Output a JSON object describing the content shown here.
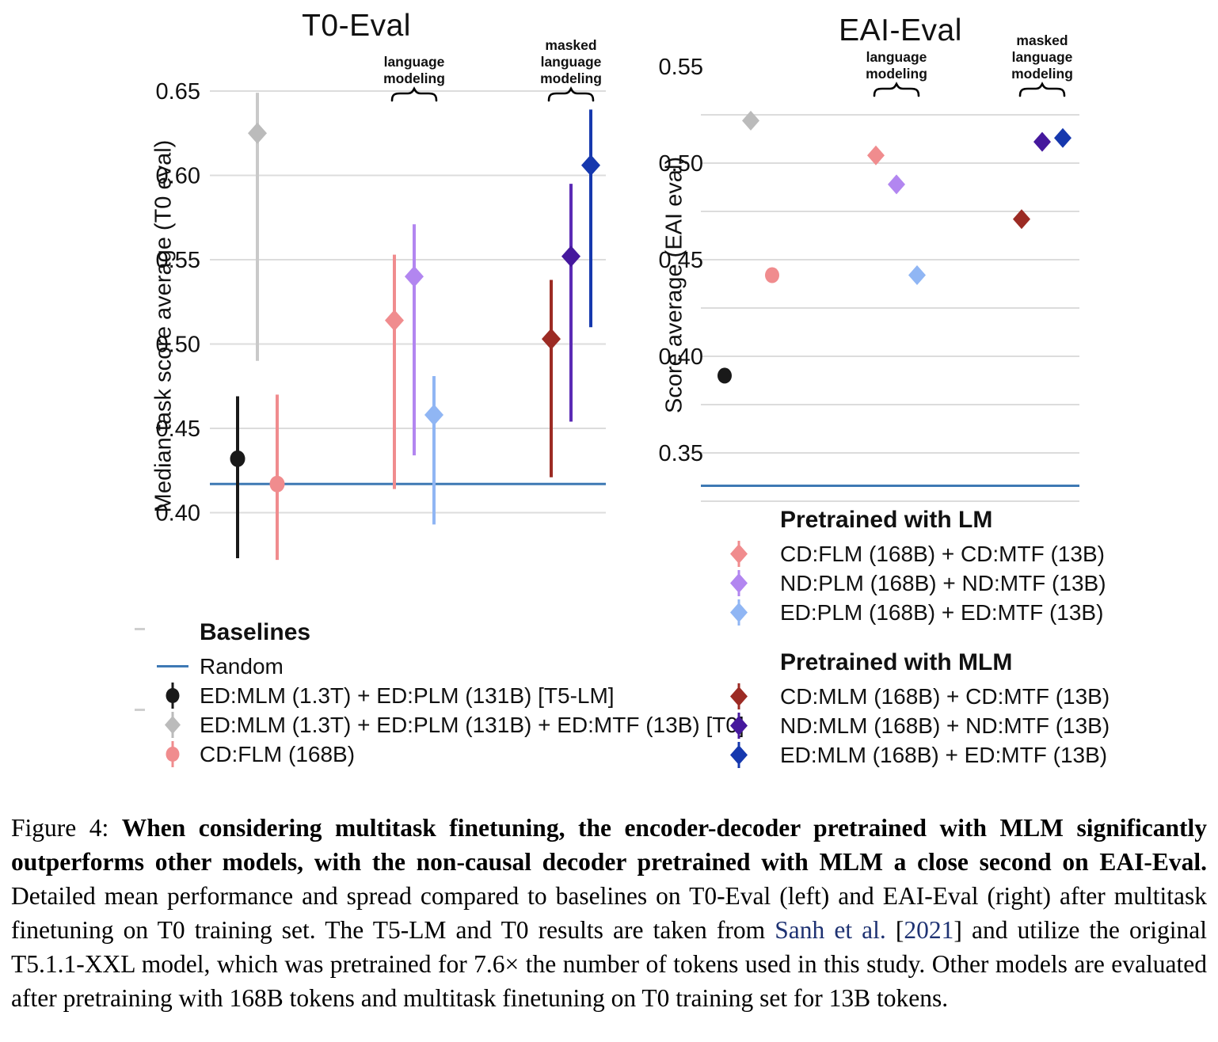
{
  "chart_data": [
    {
      "type": "scatter",
      "panel": "left",
      "title": "T0-Eval",
      "ylabel": "Median task score average (T0 eval)",
      "ylim": [
        0.365,
        0.66
      ],
      "grid": "on",
      "legend_position": "below",
      "yticks": [
        {
          "v": 0.65,
          "label": "0.65"
        },
        {
          "v": 0.6,
          "label": "0.60"
        },
        {
          "v": 0.55,
          "label": "0.55"
        },
        {
          "v": 0.5,
          "label": "0.50"
        },
        {
          "v": 0.45,
          "label": "0.45"
        },
        {
          "v": 0.4,
          "label": "0.40"
        }
      ],
      "gridline_values": [
        0.65,
        0.6,
        0.55,
        0.5,
        0.45,
        0.4
      ],
      "random_baseline": 0.417,
      "annotations": [
        {
          "group": "lm",
          "lines": [
            "language",
            "modeling"
          ]
        },
        {
          "group": "mlm",
          "lines": [
            "masked",
            "language",
            "modeling"
          ]
        }
      ],
      "series": [
        {
          "label": "ED:MLM (1.3T) + ED:PLM (131B) [T5-LM]",
          "marker": "circle",
          "color": "#191919",
          "group": "baseline",
          "slot": 0,
          "mean": 0.432,
          "lo": 0.373,
          "hi": 0.469
        },
        {
          "label": "ED:MLM (1.3T) + ED:PLM (131B) + ED:MTF (13B) [T0]",
          "marker": "diamond",
          "color": "#BBBBBB",
          "bar_color": "#C9C9C9",
          "group": "baseline",
          "slot": 1,
          "mean": 0.625,
          "lo": 0.49,
          "hi": 0.649
        },
        {
          "label": "CD:FLM (168B)",
          "marker": "circle",
          "color": "#F08C8E",
          "group": "baseline",
          "slot": 2,
          "mean": 0.417,
          "lo": 0.372,
          "hi": 0.47
        },
        {
          "label": "CD:FLM (168B) + CD:MTF (13B)",
          "marker": "diamond",
          "color": "#F08C8E",
          "group": "lm",
          "slot": 0,
          "mean": 0.514,
          "lo": 0.414,
          "hi": 0.553
        },
        {
          "label": "ND:PLM (168B) + ND:MTF (13B)",
          "marker": "diamond",
          "color": "#B286F0",
          "group": "lm",
          "slot": 1,
          "mean": 0.54,
          "lo": 0.434,
          "hi": 0.571
        },
        {
          "label": "ED:PLM (168B) + ED:MTF (13B)",
          "marker": "diamond",
          "color": "#90B6F4",
          "group": "lm",
          "slot": 2,
          "mean": 0.458,
          "lo": 0.393,
          "hi": 0.481
        },
        {
          "label": "CD:MLM (168B) + CD:MTF (13B)",
          "marker": "diamond",
          "color": "#9C2B24",
          "group": "mlm",
          "slot": 0,
          "mean": 0.503,
          "lo": 0.421,
          "hi": 0.538
        },
        {
          "label": "ND:MLM (168B) + ND:MTF (13B)",
          "marker": "diamond",
          "color": "#45189D",
          "bar_color": "#5B2BB5",
          "group": "mlm",
          "slot": 1,
          "mean": 0.552,
          "lo": 0.454,
          "hi": 0.595
        },
        {
          "label": "ED:MLM (168B) + ED:MTF (13B)",
          "marker": "diamond",
          "color": "#1638AE",
          "group": "mlm",
          "slot": 2,
          "mean": 0.606,
          "lo": 0.51,
          "hi": 0.639
        }
      ]
    },
    {
      "type": "scatter",
      "panel": "right",
      "title": "EAI-Eval",
      "ylabel": "Score average (EAI eval)",
      "ylim": [
        0.315,
        0.555
      ],
      "grid": "on",
      "legend_position": "below",
      "yticks": [
        {
          "v": 0.55,
          "label": "0.55"
        },
        {
          "v": 0.5,
          "label": "0.50"
        },
        {
          "v": 0.45,
          "label": "0.45"
        },
        {
          "v": 0.4,
          "label": "0.40"
        },
        {
          "v": 0.35,
          "label": "0.35"
        }
      ],
      "gridline_values": [
        0.525,
        0.5,
        0.475,
        0.45,
        0.425,
        0.4,
        0.375,
        0.35,
        0.325
      ],
      "random_baseline": 0.333,
      "annotations": [
        {
          "group": "lm",
          "lines": [
            "language",
            "modeling"
          ]
        },
        {
          "group": "mlm",
          "lines": [
            "masked",
            "language",
            "modeling"
          ]
        }
      ],
      "series": [
        {
          "label": "ED:MLM (1.3T) + ED:PLM (131B) [T5-LM]",
          "marker": "circle",
          "color": "#191919",
          "group": "baseline",
          "slot": 0,
          "mean": 0.39
        },
        {
          "label": "ED:MLM (1.3T) + ED:PLM (131B) + ED:MTF (13B) [T0]",
          "marker": "diamond",
          "color": "#BBBBBB",
          "group": "baseline",
          "slot": 1,
          "mean": 0.522
        },
        {
          "label": "CD:FLM (168B)",
          "marker": "circle",
          "color": "#F08C8E",
          "group": "baseline",
          "slot": 2,
          "mean": 0.442
        },
        {
          "label": "CD:FLM (168B) + CD:MTF (13B)",
          "marker": "diamond",
          "color": "#F08C8E",
          "group": "lm",
          "slot": 0,
          "mean": 0.504
        },
        {
          "label": "ND:PLM (168B) + ND:MTF (13B)",
          "marker": "diamond",
          "color": "#B286F0",
          "group": "lm",
          "slot": 1,
          "mean": 0.489
        },
        {
          "label": "ED:PLM (168B) + ED:MTF (13B)",
          "marker": "diamond",
          "color": "#90B6F4",
          "group": "lm",
          "slot": 2,
          "mean": 0.442
        },
        {
          "label": "CD:MLM (168B) + CD:MTF (13B)",
          "marker": "diamond",
          "color": "#9C2B24",
          "group": "mlm",
          "slot": 0,
          "mean": 0.471
        },
        {
          "label": "ND:MLM (168B) + ND:MTF (13B)",
          "marker": "diamond",
          "color": "#45189D",
          "group": "mlm",
          "slot": 1,
          "mean": 0.511
        },
        {
          "label": "ED:MLM (168B) + ED:MTF (13B)",
          "marker": "diamond",
          "color": "#1638AE",
          "group": "mlm",
          "slot": 2,
          "mean": 0.513
        }
      ]
    }
  ],
  "legends": {
    "baselines": {
      "heading": "Baselines",
      "items": [
        {
          "marker": "hline",
          "color": "#3E79B4",
          "label": "Random"
        },
        {
          "marker": "circle",
          "color": "#191919",
          "label": "ED:MLM (1.3T) + ED:PLM (131B) [T5-LM]"
        },
        {
          "marker": "diamond",
          "color": "#BBBBBB",
          "label": "ED:MLM (1.3T) + ED:PLM (131B) + ED:MTF (13B) [T0]"
        },
        {
          "marker": "circle",
          "color": "#F08C8E",
          "label": "CD:FLM (168B)"
        }
      ]
    },
    "lm": {
      "heading": "Pretrained with LM",
      "items": [
        {
          "marker": "diamond",
          "color": "#F08C8E",
          "label": "CD:FLM (168B) + CD:MTF (13B)"
        },
        {
          "marker": "diamond",
          "color": "#B286F0",
          "label": "ND:PLM (168B) + ND:MTF (13B)"
        },
        {
          "marker": "diamond",
          "color": "#90B6F4",
          "label": "ED:PLM (168B) + ED:MTF (13B)"
        }
      ]
    },
    "mlm": {
      "heading": "Pretrained with MLM",
      "items": [
        {
          "marker": "diamond",
          "color": "#9C2B24",
          "label": "CD:MLM (168B) + CD:MTF (13B)"
        },
        {
          "marker": "diamond",
          "color": "#45189D",
          "label": "ND:MLM (168B) + ND:MTF (13B)"
        },
        {
          "marker": "diamond",
          "color": "#1638AE",
          "label": "ED:MLM (168B) + ED:MTF (13B)"
        }
      ]
    }
  },
  "caption": {
    "prefix": "Figure 4:  ",
    "bold": "When considering multitask finetuning, the encoder-decoder pretrained with MLM significantly outperforms other models, with the non-causal decoder pretrained with MLM a close second on EAI-Eval.",
    "body1": " Detailed mean performance and spread compared to baselines on T0-Eval (left) and EAI-Eval (right) after multitask finetuning on T0 training set. The T5-LM and T0 results are taken from ",
    "link_author": "Sanh et al.",
    "open_bracket": " [",
    "link_year": "2021",
    "close_bracket": "]",
    "body2": " and utilize the original T5.1.1-XXL model, which was pretrained for 7.6× the number of tokens used in this study. Other models are evaluated after pretraining with 168B tokens and multitask finetuning on T0 training set for 13B tokens."
  },
  "style_colors": {
    "random_line": "#3E79B4",
    "gridline": "#DCDCDC",
    "link": "#1E3272",
    "text": "#111111"
  }
}
